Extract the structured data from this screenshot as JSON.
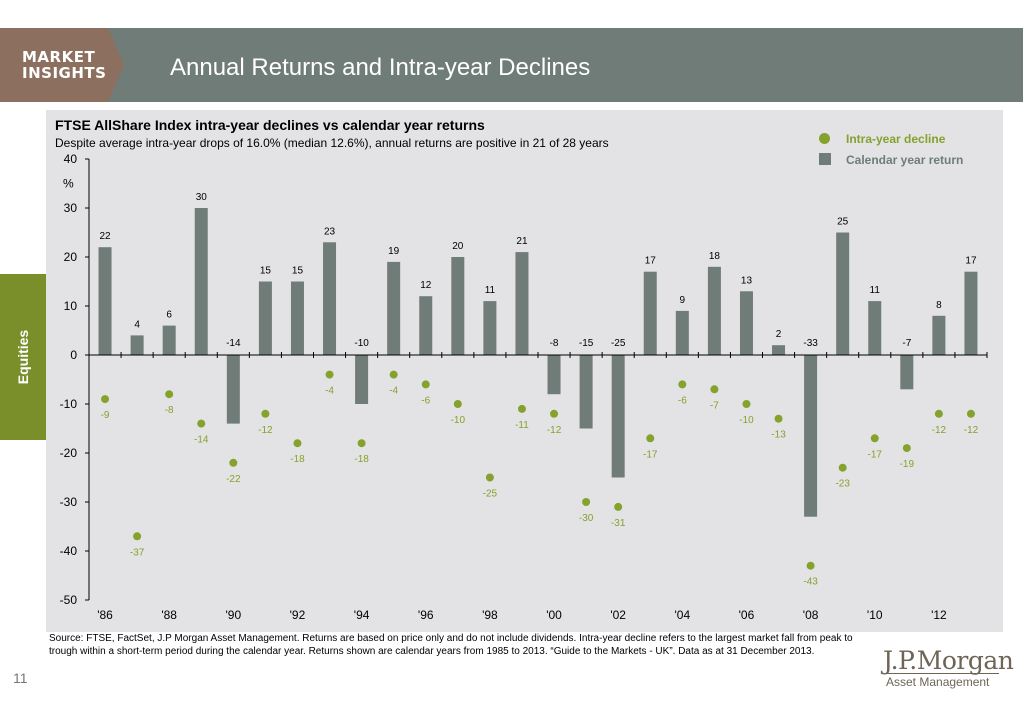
{
  "header": {
    "logo_line1": "MARKET",
    "logo_line2": "INSIGHTS",
    "title": "Annual Returns and Intra-year Declines"
  },
  "side_tab": {
    "label": "Equities"
  },
  "chart": {
    "title": "FTSE AllShare Index intra-year declines vs calendar year returns",
    "subtitle": "Despite average intra-year drops of 16.0% (median 12.6%), annual returns are positive in 21 of 28 years"
  },
  "legend": {
    "dot_label": "Intra-year decline",
    "bar_label": "Calendar year return"
  },
  "chart_data": {
    "type": "bar",
    "ylabel": "%",
    "ylim": [
      -50,
      40
    ],
    "yticks": [
      -50,
      -40,
      -30,
      -20,
      -10,
      0,
      10,
      20,
      30,
      40
    ],
    "grid": false,
    "legend_position": "top-right",
    "categories": [
      "'86",
      "'87",
      "'88",
      "'89",
      "'90",
      "'91",
      "'92",
      "'93",
      "'94",
      "'95",
      "'96",
      "'97",
      "'98",
      "'99",
      "'00",
      "'01",
      "'02",
      "'03",
      "'04",
      "'05",
      "'06",
      "'07",
      "'08",
      "'09",
      "'10",
      "'11",
      "'12",
      "'13"
    ],
    "tick_labels": [
      "'86",
      "'88",
      "'90",
      "'92",
      "'94",
      "'96",
      "'98",
      "'00",
      "'02",
      "'04",
      "'06",
      "'08",
      "'10",
      "'12"
    ],
    "series": [
      {
        "name": "Calendar year return",
        "mark": "bar",
        "color": "#6f7c78",
        "values": [
          22,
          4,
          6,
          30,
          -14,
          15,
          15,
          23,
          -10,
          19,
          12,
          20,
          11,
          21,
          -8,
          -15,
          -25,
          17,
          9,
          18,
          13,
          2,
          -33,
          25,
          11,
          -7,
          8,
          17
        ]
      },
      {
        "name": "Intra-year decline",
        "mark": "dot",
        "color": "#84a22c",
        "values": [
          -9,
          -37,
          -8,
          -14,
          -22,
          -12,
          -18,
          -4,
          -18,
          -4,
          -6,
          -10,
          -25,
          -11,
          -12,
          -30,
          -31,
          -17,
          -6,
          -7,
          -10,
          -13,
          -43,
          -23,
          -17,
          -19,
          -12,
          -12
        ]
      }
    ]
  },
  "footer": {
    "source": "Source: FTSE, FactSet, J.P Morgan Asset Management. Returns are based on price only and do not include dividends. Intra-year decline refers to the largest market fall from peak to trough within a short-term period during the calendar year. Returns shown are calendar years from 1985 to 2013. “Guide to the Markets - UK”. Data as at 31 December 2013.",
    "page_number": "11",
    "logo_name": "J.P.Morgan",
    "logo_sub": "Asset Management"
  }
}
